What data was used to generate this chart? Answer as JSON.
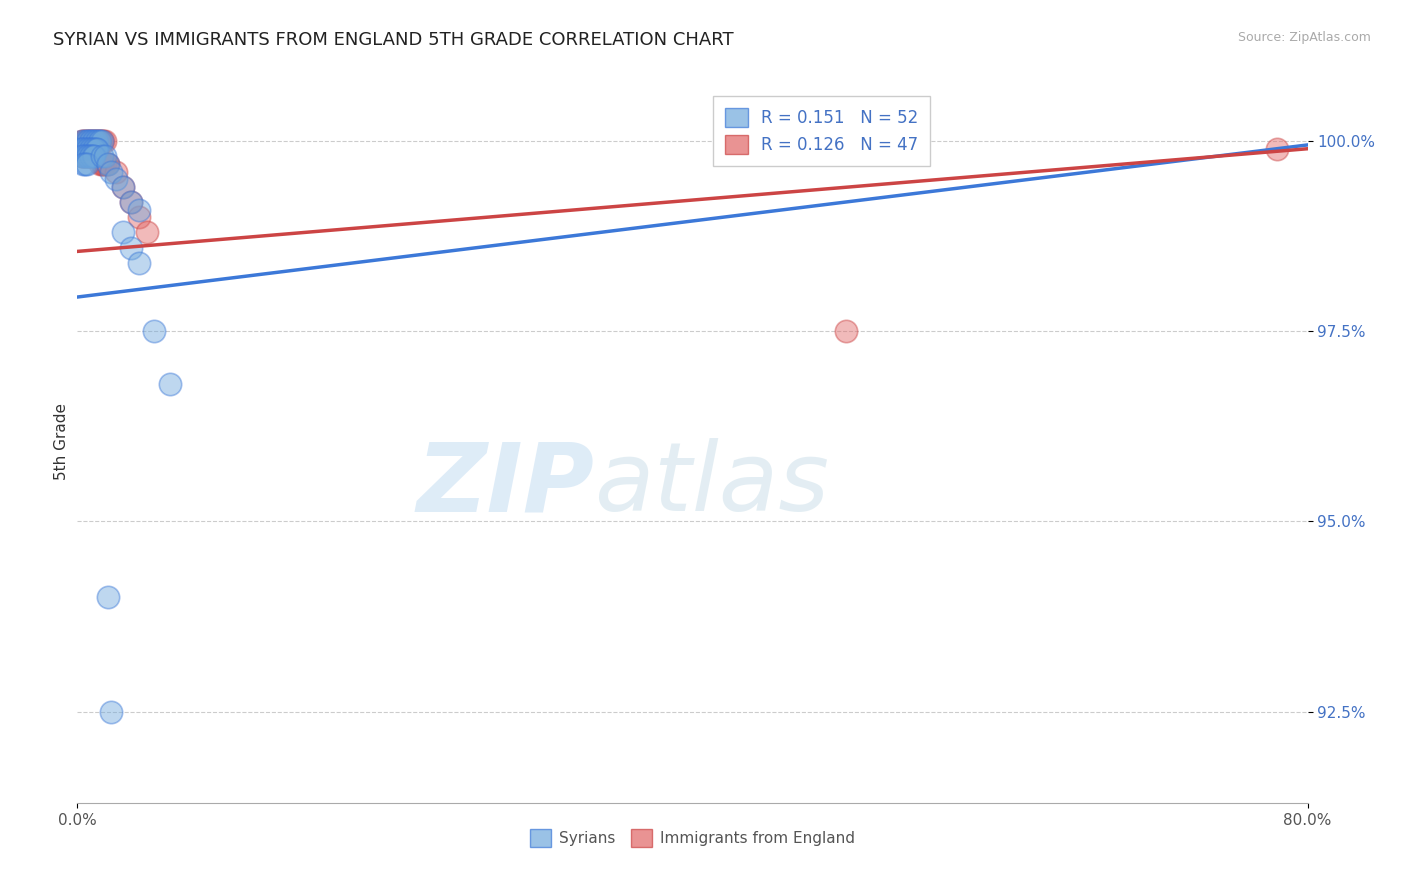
{
  "title": "SYRIAN VS IMMIGRANTS FROM ENGLAND 5TH GRADE CORRELATION CHART",
  "source_text": "Source: ZipAtlas.com",
  "xlabel_syrians": "Syrians",
  "xlabel_england": "Immigrants from England",
  "ylabel": "5th Grade",
  "xlim": [
    0.0,
    0.8
  ],
  "ylim": [
    0.913,
    1.008
  ],
  "xtick_positions": [
    0.0,
    0.8
  ],
  "xticklabels": [
    "0.0%",
    "80.0%"
  ],
  "ytick_positions": [
    0.925,
    0.95,
    0.975,
    1.0
  ],
  "yticklabels": [
    "92.5%",
    "95.0%",
    "97.5%",
    "100.0%"
  ],
  "blue_R": 0.151,
  "blue_N": 52,
  "pink_R": 0.126,
  "pink_N": 47,
  "blue_color": "#6fa8dc",
  "pink_color": "#e06666",
  "blue_line_color": "#3c78d8",
  "pink_line_color": "#cc4444",
  "watermark_zip": "ZIP",
  "watermark_atlas": "atlas",
  "blue_line_x": [
    0.0,
    0.8
  ],
  "blue_line_y": [
    0.9795,
    0.9995
  ],
  "pink_line_x": [
    0.0,
    0.8
  ],
  "pink_line_y": [
    0.9855,
    0.999
  ],
  "blue_scatter_x": [
    0.003,
    0.005,
    0.006,
    0.007,
    0.008,
    0.009,
    0.01,
    0.011,
    0.012,
    0.013,
    0.014,
    0.015,
    0.016,
    0.002,
    0.003,
    0.004,
    0.005,
    0.006,
    0.007,
    0.008,
    0.009,
    0.01,
    0.011,
    0.012,
    0.013,
    0.003,
    0.004,
    0.005,
    0.006,
    0.007,
    0.008,
    0.009,
    0.01,
    0.011,
    0.004,
    0.005,
    0.006,
    0.016,
    0.018,
    0.02,
    0.022,
    0.025,
    0.03,
    0.035,
    0.04,
    0.03,
    0.035,
    0.04,
    0.05,
    0.06,
    0.02,
    0.022
  ],
  "blue_scatter_y": [
    1.0,
    1.0,
    1.0,
    1.0,
    1.0,
    1.0,
    1.0,
    1.0,
    1.0,
    1.0,
    1.0,
    1.0,
    1.0,
    0.999,
    0.999,
    0.999,
    0.999,
    0.999,
    0.999,
    0.999,
    0.999,
    0.999,
    0.999,
    0.999,
    0.999,
    0.998,
    0.998,
    0.998,
    0.998,
    0.998,
    0.998,
    0.998,
    0.998,
    0.998,
    0.997,
    0.997,
    0.997,
    0.998,
    0.998,
    0.997,
    0.996,
    0.995,
    0.994,
    0.992,
    0.991,
    0.988,
    0.986,
    0.984,
    0.975,
    0.968,
    0.94,
    0.925
  ],
  "pink_scatter_x": [
    0.003,
    0.004,
    0.005,
    0.006,
    0.007,
    0.008,
    0.009,
    0.01,
    0.011,
    0.012,
    0.013,
    0.014,
    0.015,
    0.016,
    0.017,
    0.018,
    0.003,
    0.004,
    0.005,
    0.006,
    0.007,
    0.008,
    0.009,
    0.01,
    0.011,
    0.012,
    0.003,
    0.004,
    0.005,
    0.006,
    0.007,
    0.008,
    0.009,
    0.01,
    0.015,
    0.016,
    0.017,
    0.018,
    0.019,
    0.02,
    0.025,
    0.03,
    0.035,
    0.04,
    0.045,
    0.5,
    0.78
  ],
  "pink_scatter_y": [
    1.0,
    1.0,
    1.0,
    1.0,
    1.0,
    1.0,
    1.0,
    1.0,
    1.0,
    1.0,
    1.0,
    1.0,
    1.0,
    1.0,
    1.0,
    1.0,
    0.999,
    0.999,
    0.999,
    0.999,
    0.999,
    0.999,
    0.999,
    0.999,
    0.999,
    0.999,
    0.998,
    0.998,
    0.998,
    0.998,
    0.998,
    0.998,
    0.998,
    0.998,
    0.997,
    0.997,
    0.997,
    0.997,
    0.997,
    0.997,
    0.996,
    0.994,
    0.992,
    0.99,
    0.988,
    0.975,
    0.999
  ]
}
